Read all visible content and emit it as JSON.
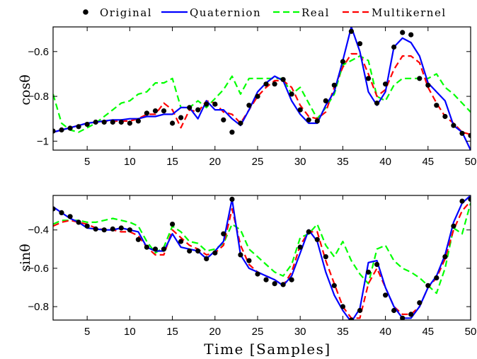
{
  "chart_data": [
    {
      "type": "line",
      "ylabel": "cosθ",
      "xlim": [
        1,
        50
      ],
      "ylim": [
        -1.04,
        -0.49
      ],
      "xticks": [
        5,
        10,
        15,
        20,
        25,
        30,
        35,
        40,
        45,
        50
      ],
      "yticks": [
        -1,
        -0.8,
        -0.6
      ],
      "ytick_labels": [
        "−1",
        "−0.8",
        "−0.6"
      ],
      "legend": {
        "placement": "top, outside",
        "entries": [
          "Original",
          "Quaternion",
          "Real",
          "Multikernel"
        ]
      },
      "series": [
        {
          "name": "Original",
          "style": "markers",
          "color": "#000000",
          "x": [
            1,
            2,
            3,
            4,
            5,
            6,
            7,
            8,
            9,
            10,
            11,
            12,
            13,
            14,
            15,
            16,
            17,
            18,
            19,
            20,
            21,
            22,
            23,
            24,
            25,
            26,
            27,
            28,
            29,
            30,
            31,
            32,
            33,
            34,
            35,
            36,
            37,
            38,
            39,
            40,
            41,
            42,
            43,
            44,
            45,
            46,
            47,
            48,
            49,
            50
          ],
          "y": [
            -0.955,
            -0.95,
            -0.942,
            -0.935,
            -0.925,
            -0.915,
            -0.915,
            -0.915,
            -0.915,
            -0.92,
            -0.91,
            -0.875,
            -0.865,
            -0.865,
            -0.92,
            -0.895,
            -0.85,
            -0.86,
            -0.835,
            -0.835,
            -0.905,
            -0.96,
            -0.92,
            -0.84,
            -0.8,
            -0.745,
            -0.745,
            -0.725,
            -0.79,
            -0.86,
            -0.905,
            -0.91,
            -0.82,
            -0.75,
            -0.645,
            -0.51,
            -0.565,
            -0.72,
            -0.83,
            -0.745,
            -0.58,
            -0.515,
            -0.525,
            -0.72,
            -0.75,
            -0.84,
            -0.89,
            -0.93,
            -0.965,
            -0.975
          ]
        },
        {
          "name": "Quaternion",
          "style": "solid",
          "color": "#0000ff",
          "x": [
            1,
            2,
            3,
            4,
            5,
            6,
            7,
            8,
            9,
            10,
            11,
            12,
            13,
            14,
            15,
            16,
            17,
            18,
            19,
            20,
            21,
            22,
            23,
            24,
            25,
            26,
            27,
            28,
            29,
            30,
            31,
            32,
            33,
            34,
            35,
            36,
            37,
            38,
            39,
            40,
            41,
            42,
            43,
            44,
            45,
            46,
            47,
            48,
            49,
            50
          ],
          "y": [
            -0.96,
            -0.95,
            -0.94,
            -0.93,
            -0.92,
            -0.915,
            -0.91,
            -0.905,
            -0.905,
            -0.9,
            -0.9,
            -0.89,
            -0.89,
            -0.88,
            -0.88,
            -0.85,
            -0.85,
            -0.9,
            -0.82,
            -0.86,
            -0.86,
            -0.9,
            -0.93,
            -0.86,
            -0.78,
            -0.74,
            -0.71,
            -0.73,
            -0.82,
            -0.88,
            -0.92,
            -0.92,
            -0.84,
            -0.78,
            -0.64,
            -0.49,
            -0.6,
            -0.78,
            -0.84,
            -0.78,
            -0.58,
            -0.54,
            -0.56,
            -0.62,
            -0.74,
            -0.78,
            -0.82,
            -0.93,
            -0.96,
            -1.04
          ]
        },
        {
          "name": "Real",
          "style": "dashed",
          "color": "#00ff00",
          "x": [
            1,
            2,
            3,
            4,
            5,
            6,
            7,
            8,
            9,
            10,
            11,
            12,
            13,
            14,
            15,
            16,
            17,
            18,
            19,
            20,
            21,
            22,
            23,
            24,
            25,
            26,
            27,
            28,
            29,
            30,
            31,
            32,
            33,
            34,
            35,
            36,
            37,
            38,
            39,
            40,
            41,
            42,
            43,
            44,
            45,
            46,
            47,
            48,
            49,
            50
          ],
          "y": [
            -0.79,
            -0.92,
            -0.95,
            -0.96,
            -0.94,
            -0.92,
            -0.89,
            -0.86,
            -0.83,
            -0.82,
            -0.79,
            -0.78,
            -0.74,
            -0.74,
            -0.72,
            -0.85,
            -0.85,
            -0.82,
            -0.85,
            -0.81,
            -0.77,
            -0.71,
            -0.79,
            -0.72,
            -0.72,
            -0.72,
            -0.72,
            -0.72,
            -0.79,
            -0.76,
            -0.83,
            -0.9,
            -0.85,
            -0.79,
            -0.66,
            -0.64,
            -0.62,
            -0.64,
            -0.8,
            -0.82,
            -0.75,
            -0.72,
            -0.72,
            -0.72,
            -0.72,
            -0.7,
            -0.76,
            -0.79,
            -0.83,
            -0.87
          ]
        },
        {
          "name": "Multikernel",
          "style": "dashed",
          "color": "#ff0000",
          "x": [
            1,
            2,
            3,
            4,
            5,
            6,
            7,
            8,
            9,
            10,
            11,
            12,
            13,
            14,
            15,
            16,
            17,
            18,
            19,
            20,
            21,
            22,
            23,
            24,
            25,
            26,
            27,
            28,
            29,
            30,
            31,
            32,
            33,
            34,
            35,
            36,
            37,
            38,
            39,
            40,
            41,
            42,
            43,
            44,
            45,
            46,
            47,
            48,
            49,
            50
          ],
          "y": [
            -0.96,
            -0.95,
            -0.94,
            -0.93,
            -0.92,
            -0.915,
            -0.91,
            -0.91,
            -0.91,
            -0.91,
            -0.9,
            -0.88,
            -0.88,
            -0.83,
            -0.86,
            -0.94,
            -0.86,
            -0.87,
            -0.82,
            -0.83,
            -0.87,
            -0.88,
            -0.92,
            -0.86,
            -0.8,
            -0.76,
            -0.73,
            -0.73,
            -0.76,
            -0.84,
            -0.89,
            -0.9,
            -0.87,
            -0.76,
            -0.67,
            -0.61,
            -0.61,
            -0.7,
            -0.8,
            -0.77,
            -0.68,
            -0.62,
            -0.62,
            -0.65,
            -0.76,
            -0.83,
            -0.89,
            -0.92,
            -0.96,
            -0.97
          ]
        }
      ]
    },
    {
      "type": "line",
      "ylabel": "sinθ",
      "xlabel": "Time [Samples]",
      "xlim": [
        1,
        50
      ],
      "ylim": [
        -0.87,
        -0.22
      ],
      "xticks": [
        5,
        10,
        15,
        20,
        25,
        30,
        35,
        40,
        45,
        50
      ],
      "yticks": [
        -0.8,
        -0.6,
        -0.4
      ],
      "ytick_labels": [
        "−0.8",
        "−0.6",
        "−0.4"
      ],
      "series": [
        {
          "name": "Original",
          "style": "markers",
          "color": "#000000",
          "x": [
            1,
            2,
            3,
            4,
            5,
            6,
            7,
            8,
            9,
            10,
            11,
            12,
            13,
            14,
            15,
            16,
            17,
            18,
            19,
            20,
            21,
            22,
            23,
            24,
            25,
            26,
            27,
            28,
            29,
            30,
            31,
            32,
            33,
            34,
            35,
            36,
            37,
            38,
            39,
            40,
            41,
            42,
            43,
            44,
            45,
            46,
            47,
            48,
            49,
            50
          ],
          "y": [
            -0.29,
            -0.31,
            -0.33,
            -0.36,
            -0.38,
            -0.395,
            -0.4,
            -0.395,
            -0.39,
            -0.4,
            -0.45,
            -0.49,
            -0.5,
            -0.5,
            -0.37,
            -0.46,
            -0.51,
            -0.51,
            -0.55,
            -0.52,
            -0.42,
            -0.24,
            -0.53,
            -0.56,
            -0.63,
            -0.66,
            -0.68,
            -0.685,
            -0.66,
            -0.49,
            -0.41,
            -0.45,
            -0.54,
            -0.69,
            -0.8,
            -0.87,
            -0.82,
            -0.62,
            -0.58,
            -0.74,
            -0.82,
            -0.86,
            -0.84,
            -0.78,
            -0.69,
            -0.65,
            -0.54,
            -0.38,
            -0.25,
            -0.24
          ]
        },
        {
          "name": "Quaternion",
          "style": "solid",
          "color": "#0000ff",
          "x": [
            1,
            2,
            3,
            4,
            5,
            6,
            7,
            8,
            9,
            10,
            11,
            12,
            13,
            14,
            15,
            16,
            17,
            18,
            19,
            20,
            21,
            22,
            23,
            24,
            25,
            26,
            27,
            28,
            29,
            30,
            31,
            32,
            33,
            34,
            35,
            36,
            37,
            38,
            39,
            40,
            41,
            42,
            43,
            44,
            45,
            46,
            47,
            48,
            49,
            50
          ],
          "y": [
            -0.28,
            -0.31,
            -0.34,
            -0.36,
            -0.39,
            -0.395,
            -0.4,
            -0.4,
            -0.39,
            -0.4,
            -0.41,
            -0.49,
            -0.51,
            -0.51,
            -0.42,
            -0.49,
            -0.5,
            -0.51,
            -0.55,
            -0.51,
            -0.46,
            -0.24,
            -0.53,
            -0.6,
            -0.62,
            -0.64,
            -0.66,
            -0.69,
            -0.64,
            -0.52,
            -0.4,
            -0.46,
            -0.62,
            -0.74,
            -0.82,
            -0.88,
            -0.81,
            -0.57,
            -0.56,
            -0.7,
            -0.8,
            -0.86,
            -0.86,
            -0.8,
            -0.7,
            -0.64,
            -0.53,
            -0.36,
            -0.26,
            -0.22
          ]
        },
        {
          "name": "Real",
          "style": "dashed",
          "color": "#00ff00",
          "x": [
            1,
            2,
            3,
            4,
            5,
            6,
            7,
            8,
            9,
            10,
            11,
            12,
            13,
            14,
            15,
            16,
            17,
            18,
            19,
            20,
            21,
            22,
            23,
            24,
            25,
            26,
            27,
            28,
            29,
            30,
            31,
            32,
            33,
            34,
            35,
            36,
            37,
            38,
            39,
            40,
            41,
            42,
            43,
            44,
            45,
            46,
            47,
            48,
            49,
            50
          ],
          "y": [
            -0.37,
            -0.35,
            -0.35,
            -0.35,
            -0.36,
            -0.36,
            -0.35,
            -0.34,
            -0.35,
            -0.36,
            -0.38,
            -0.46,
            -0.52,
            -0.49,
            -0.38,
            -0.41,
            -0.46,
            -0.47,
            -0.51,
            -0.5,
            -0.47,
            -0.37,
            -0.4,
            -0.5,
            -0.54,
            -0.58,
            -0.62,
            -0.64,
            -0.58,
            -0.44,
            -0.42,
            -0.37,
            -0.48,
            -0.54,
            -0.46,
            -0.56,
            -0.63,
            -0.68,
            -0.5,
            -0.48,
            -0.56,
            -0.6,
            -0.62,
            -0.65,
            -0.69,
            -0.73,
            -0.6,
            -0.39,
            -0.42,
            -0.26
          ]
        },
        {
          "name": "Multikernel",
          "style": "dashed",
          "color": "#ff0000",
          "x": [
            1,
            2,
            3,
            4,
            5,
            6,
            7,
            8,
            9,
            10,
            11,
            12,
            13,
            14,
            15,
            16,
            17,
            18,
            19,
            20,
            21,
            22,
            23,
            24,
            25,
            26,
            27,
            28,
            29,
            30,
            31,
            32,
            33,
            34,
            35,
            36,
            37,
            38,
            39,
            40,
            41,
            42,
            43,
            44,
            45,
            46,
            47,
            48,
            49,
            50
          ],
          "y": [
            -0.38,
            -0.36,
            -0.35,
            -0.36,
            -0.37,
            -0.39,
            -0.4,
            -0.4,
            -0.41,
            -0.41,
            -0.43,
            -0.49,
            -0.53,
            -0.53,
            -0.4,
            -0.44,
            -0.48,
            -0.5,
            -0.53,
            -0.52,
            -0.48,
            -0.29,
            -0.48,
            -0.58,
            -0.62,
            -0.64,
            -0.66,
            -0.69,
            -0.62,
            -0.48,
            -0.41,
            -0.41,
            -0.56,
            -0.68,
            -0.8,
            -0.86,
            -0.86,
            -0.68,
            -0.6,
            -0.7,
            -0.8,
            -0.84,
            -0.84,
            -0.8,
            -0.7,
            -0.65,
            -0.55,
            -0.4,
            -0.3,
            -0.25
          ]
        }
      ]
    }
  ]
}
